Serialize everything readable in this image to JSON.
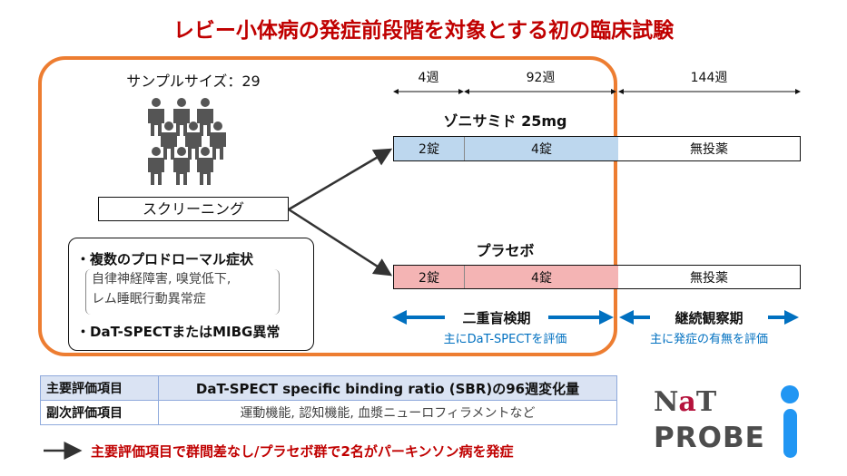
{
  "title": "レビー小体病の発症前段階を対象とする初の臨床試験",
  "sample_size": "サンプルサイズ：29",
  "screening": "スクリーニング",
  "criteria": {
    "item1": "・複数のプロドローマル症状",
    "sub1": "自律神経障害, 嗅覚低下,",
    "sub2": "レム睡眠行動異常症",
    "item2": "・DaT-SPECTまたはMIBG異常"
  },
  "timeline": {
    "seg1": "4週",
    "seg2": "92週",
    "seg3": "144週"
  },
  "groups": [
    {
      "name": "ゾニサミド 25mg",
      "dose1": "2錠",
      "dose2": "4錠",
      "after": "無投薬",
      "color": "#bdd7ee"
    },
    {
      "name": "プラセボ",
      "dose1": "2錠",
      "dose2": "4錠",
      "after": "無投薬",
      "color": "#f4b4b4"
    }
  ],
  "phases": [
    {
      "label": "二重盲検期",
      "sub": "主にDaT-SPECTを評価"
    },
    {
      "label": "継続観察期",
      "sub": "主に発症の有無を評価"
    }
  ],
  "endpoints": [
    {
      "label": "主要評価項目",
      "value": "DaT-SPECT specific binding ratio (SBR)の96週変化量"
    },
    {
      "label": "副次評価項目",
      "value": "運動機能, 認知機能, 血漿ニューロフィラメントなど"
    }
  ],
  "result_note": "主要評価項目で群間差なし/プラセボ群で2名がパーキンソン病を発症",
  "logo": {
    "line1a": "Na",
    "line1b": "T",
    "line2": "PROBE",
    "i": "i"
  }
}
